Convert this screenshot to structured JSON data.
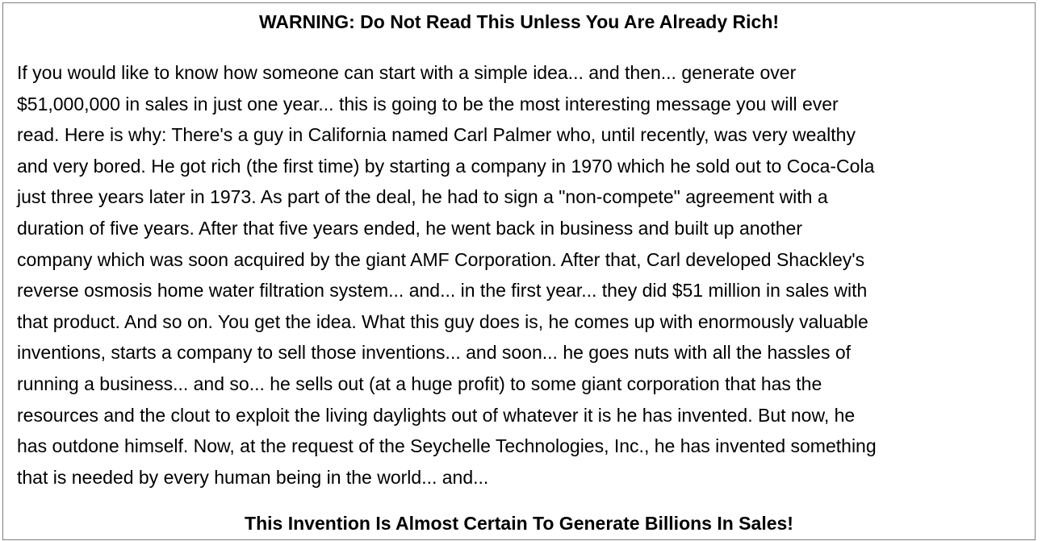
{
  "document": {
    "headline": "WARNING: Do Not Read This Unless You Are Already Rich!",
    "body_lines": [
      "If you would like to know how someone can start with a simple idea... and then... generate over",
      "$51,000,000 in sales in just one year... this is going to be the most interesting message you will ever",
      "read. Here is why: There's a guy in California named Carl Palmer who, until recently, was very wealthy",
      "and very bored. He got rich (the first time) by starting a company in 1970 which he sold out to Coca-Cola",
      "just three years later in 1973. As part of the deal, he had to sign a \"non-compete\" agreement with a",
      "duration of five years. After that five years ended, he went back in business and built up another",
      "company which was soon acquired by the giant AMF Corporation. After that, Carl developed Shackley's",
      "reverse osmosis home water filtration system... and... in the first year... they did $51 million in sales with",
      "that product. And so on. You get the idea. What this guy does is, he comes up with enormously valuable",
      "inventions, starts a company to sell those inventions... and soon... he goes nuts with all the hassles of",
      "running a business... and so... he sells out (at a huge profit) to some giant corporation that has the",
      "resources and the clout to exploit the living daylights out of whatever it is he has invented. But now, he",
      "has outdone himself. Now, at the request of the Seychelle Technologies, Inc., he has invented something",
      "that is needed by every human being in the world... and..."
    ],
    "footer_headline": "This Invention Is Almost Certain To Generate Billions In Sales!"
  }
}
